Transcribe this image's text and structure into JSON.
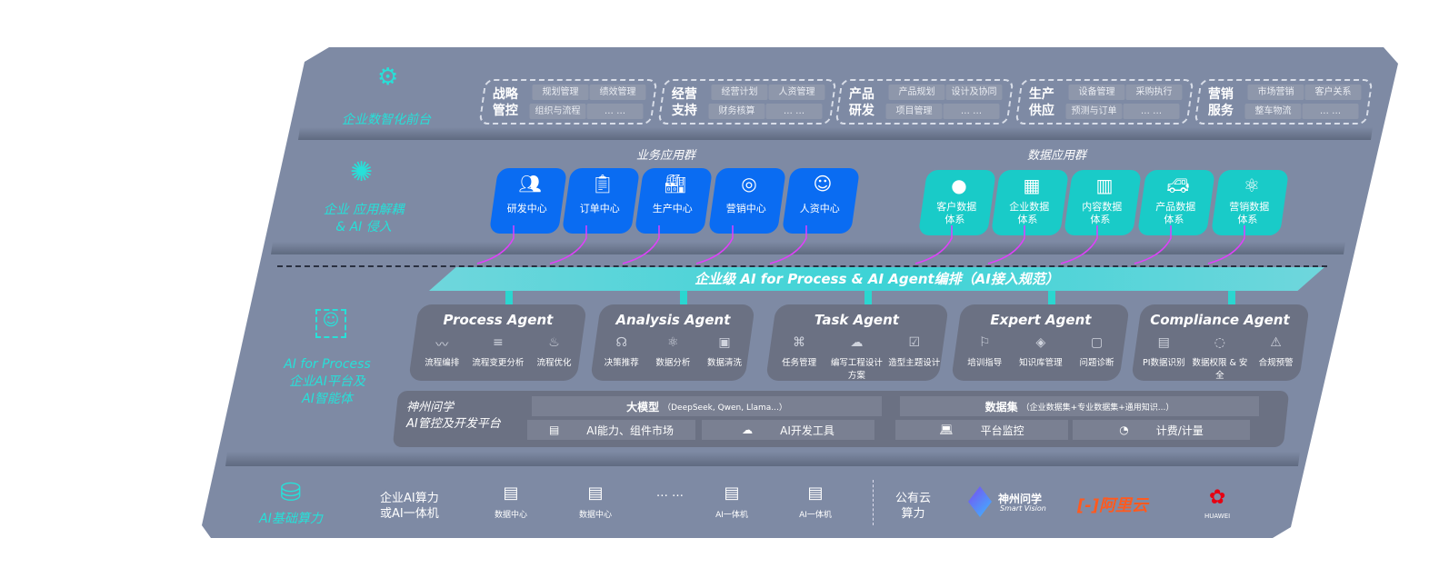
{
  "layers": {
    "frontend": {
      "label": "企业数智化前台",
      "icon": "brain-icon"
    },
    "apps": {
      "label_line1": "企业 应用解耦",
      "label_line2": "& AI 侵入",
      "icon": "molecule-icon"
    },
    "ai": {
      "label_line1": "AI for Process",
      "label_line2": "企业AI平台及",
      "label_line3": "AI智能体",
      "icon": "face-scan-icon"
    },
    "compute": {
      "label": "AI基础算力",
      "icon": "database-icon"
    }
  },
  "frontend_groups": [
    {
      "title": "战略管控",
      "items": [
        "规划管理",
        "绩效管理",
        "组织与流程",
        "… …"
      ]
    },
    {
      "title": "经营支持",
      "items": [
        "经营计划",
        "人资管理",
        "财务核算",
        "… …"
      ]
    },
    {
      "title": "产品研发",
      "items": [
        "产品规划",
        "设计及协同",
        "项目管理",
        "… …"
      ]
    },
    {
      "title": "生产供应",
      "items": [
        "设备管理",
        "采购执行",
        "预测与订单",
        "… …"
      ]
    },
    {
      "title": "营销服务",
      "items": [
        "市场营销",
        "客户关系",
        "整车物流",
        "… …"
      ]
    }
  ],
  "business_apps": {
    "title": "业务应用群",
    "items": [
      {
        "label": "研发中心",
        "icon": "team-icon"
      },
      {
        "label": "订单中心",
        "icon": "clipboard-icon"
      },
      {
        "label": "生产中心",
        "icon": "factory-icon"
      },
      {
        "label": "营销中心",
        "icon": "target-icon"
      },
      {
        "label": "人资中心",
        "icon": "person-icon"
      }
    ]
  },
  "data_apps": {
    "title": "数据应用群",
    "items": [
      {
        "label1": "客户数据",
        "label2": "体系",
        "icon": "user-icon"
      },
      {
        "label1": "企业数据",
        "label2": "体系",
        "icon": "building-icon"
      },
      {
        "label1": "内容数据",
        "label2": "体系",
        "icon": "books-icon"
      },
      {
        "label1": "产品数据",
        "label2": "体系",
        "icon": "car-icon"
      },
      {
        "label1": "营销数据",
        "label2": "体系",
        "icon": "atom-icon"
      }
    ]
  },
  "orchestration_bar": "企业级 AI for Process & AI Agent编排（AI接入规范）",
  "agents": [
    {
      "title": "Process Agent",
      "items": [
        "流程编排",
        "流程变更分析",
        "流程优化"
      ]
    },
    {
      "title": "Analysis Agent",
      "items": [
        "决策推荐",
        "数据分析",
        "数据清洗"
      ]
    },
    {
      "title": "Task Agent",
      "items": [
        "任务管理",
        "编写工程设计方案",
        "造型主题设计"
      ]
    },
    {
      "title": "Expert Agent",
      "items": [
        "培训指导",
        "知识库管理",
        "问题诊断"
      ]
    },
    {
      "title": "Compliance Agent",
      "items": [
        "PI数据识别",
        "数据权限 & 安全",
        "合规预警"
      ]
    }
  ],
  "platform": {
    "name_line1": "神州问学",
    "name_line2": "AI管控及开发平台",
    "model": "大模型",
    "model_note": "（DeepSeek, Qwen, Llama...）",
    "dataset": "数据集",
    "dataset_note": "（企业数据集+专业数据集+通用知识...）",
    "tools": [
      "AI能力、组件市场",
      "AI开发工具",
      "平台监控",
      "计费/计量"
    ]
  },
  "compute": {
    "private_label1": "企业AI算力",
    "private_label2": "或AI一体机",
    "nodes": [
      "数据中心",
      "数据中心",
      "… …",
      "AI一体机",
      "AI一体机"
    ],
    "public_label1": "公有云",
    "public_label2": "算力",
    "vendors": [
      "神州问学",
      "Smart Vision",
      "阿里云",
      "HUAWEI"
    ]
  },
  "colors": {
    "panel": "#7e8aa4",
    "blue": "#0a6cf2",
    "teal": "#19cbc8",
    "accent": "#27e0d8",
    "connector": "#e040fb"
  }
}
